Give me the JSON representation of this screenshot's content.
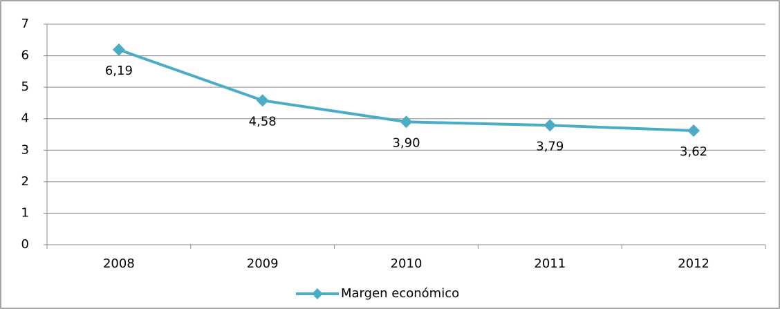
{
  "chart_data": {
    "type": "line",
    "categories": [
      "2008",
      "2009",
      "2010",
      "2011",
      "2012"
    ],
    "series": [
      {
        "name": "Margen económico",
        "color": "#4bacc6",
        "values": [
          6.19,
          4.58,
          3.9,
          3.79,
          3.62
        ],
        "value_labels": [
          "6,19",
          "4,58",
          "3,90",
          "3,79",
          "3,62"
        ]
      }
    ],
    "ylim": [
      0,
      7
    ],
    "yticks": [
      0,
      1,
      2,
      3,
      4,
      5,
      6,
      7
    ],
    "grid": true,
    "legend": "bottom"
  }
}
